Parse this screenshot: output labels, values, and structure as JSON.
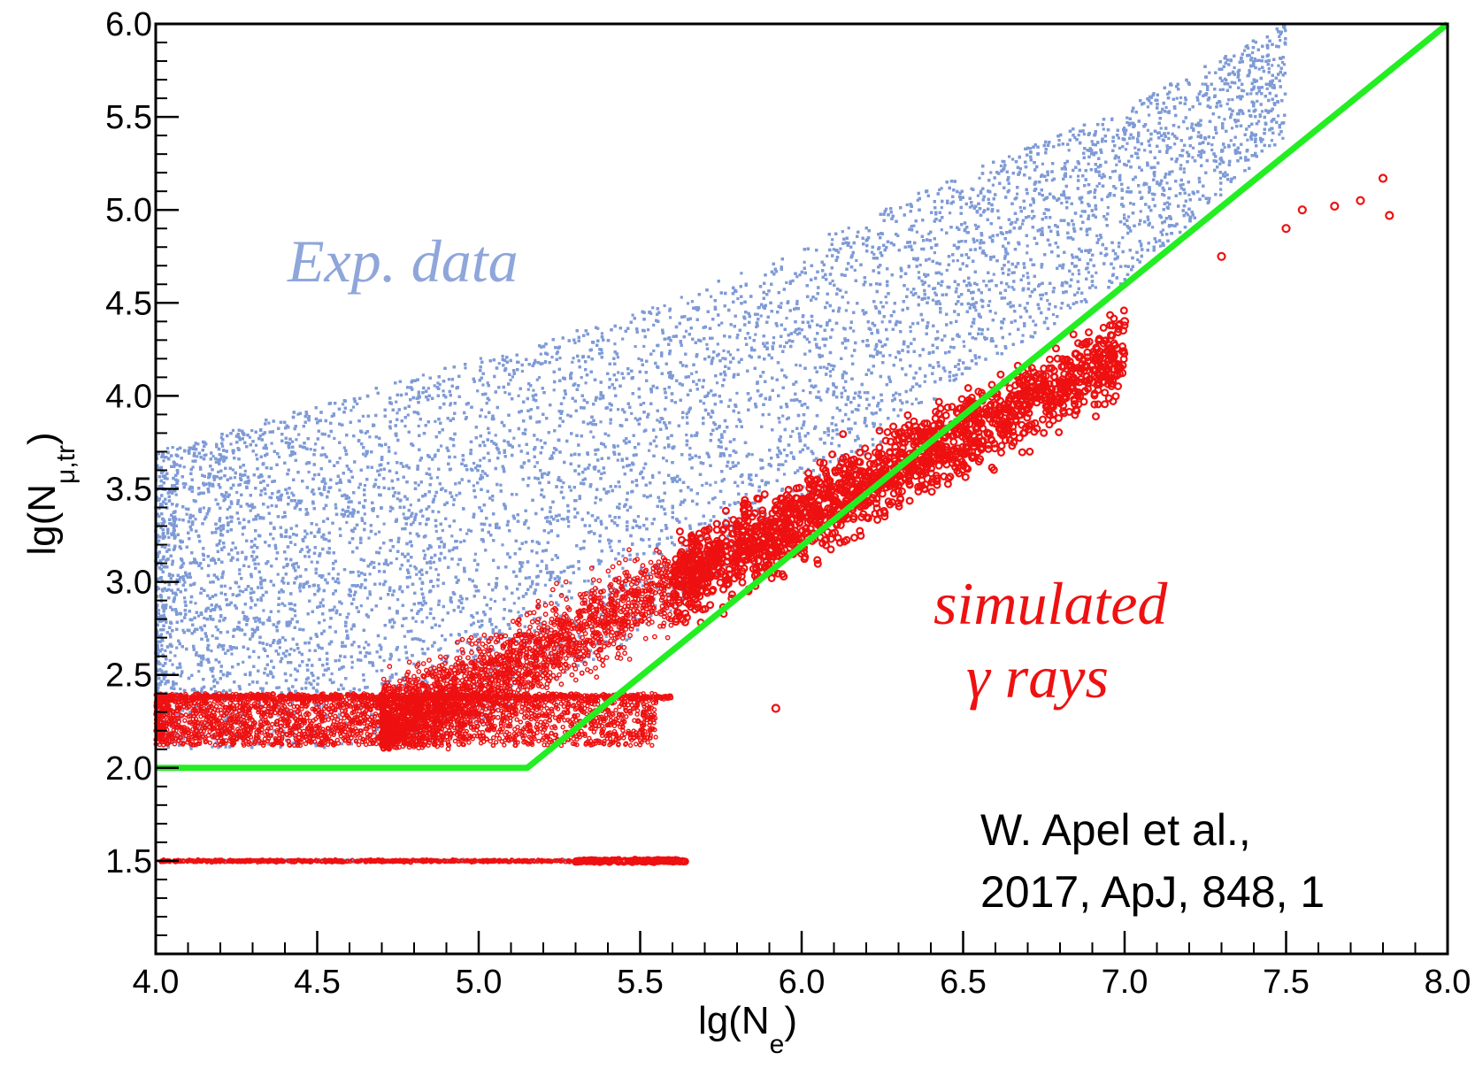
{
  "chart_data": {
    "type": "scatter",
    "xlabel": {
      "main": "lg(N",
      "sub": "e",
      "close": ")"
    },
    "ylabel": {
      "main": "lg(N",
      "sub": "μ,tr",
      "close": ")"
    },
    "xlim": [
      4.0,
      8.0
    ],
    "ylim": [
      1.0,
      6.0
    ],
    "xticks": [
      "4.0",
      "4.5",
      "5.0",
      "5.5",
      "6.0",
      "6.5",
      "7.0",
      "7.5",
      "8.0"
    ],
    "yticks": [
      "1.5",
      "2.0",
      "2.5",
      "3.0",
      "3.5",
      "4.0",
      "4.5",
      "5.0",
      "5.5",
      "6.0"
    ],
    "grid": false,
    "series": [
      {
        "name": "Exp. data",
        "color": "#7f9bd6",
        "marker": "small-dot",
        "approx_envelope_upper": [
          [
            4.0,
            3.7
          ],
          [
            4.5,
            3.95
          ],
          [
            5.0,
            4.2
          ],
          [
            5.5,
            4.45
          ],
          [
            6.0,
            4.8
          ],
          [
            6.5,
            5.2
          ],
          [
            7.0,
            5.55
          ],
          [
            7.5,
            6.0
          ]
        ],
        "approx_envelope_lower": [
          [
            4.0,
            2.1
          ],
          [
            4.5,
            2.1
          ],
          [
            5.0,
            2.2
          ],
          [
            5.5,
            2.7
          ],
          [
            6.0,
            3.4
          ],
          [
            6.5,
            4.1
          ],
          [
            7.0,
            4.6
          ],
          [
            7.5,
            5.4
          ]
        ],
        "detached_band_y": 1.5
      },
      {
        "name": "simulated γ rays",
        "color": "#ee1111",
        "marker": "open-circle",
        "highlight_points": [
          [
            5.92,
            2.32
          ],
          [
            6.7,
            4.1
          ],
          [
            7.0,
            4.4
          ],
          [
            7.3,
            4.75
          ],
          [
            7.5,
            4.9
          ],
          [
            7.55,
            5.0
          ],
          [
            7.65,
            5.02
          ],
          [
            7.73,
            5.05
          ],
          [
            7.8,
            5.17
          ],
          [
            7.82,
            4.97
          ]
        ],
        "detached_band": {
          "y": 1.5,
          "x_range": [
            4.0,
            5.65
          ]
        }
      }
    ],
    "cut_line": {
      "color": "#22ee22",
      "points": [
        [
          4.0,
          2.0
        ],
        [
          5.15,
          2.0
        ],
        [
          8.0,
          6.0
        ]
      ]
    },
    "annotations": [
      {
        "text": "Exp. data",
        "color": "#8fa6da"
      },
      {
        "text": "simulated",
        "color": "#ee1111"
      },
      {
        "text": "γ rays",
        "color": "#ee1111"
      }
    ],
    "citation": [
      "W. Apel et al.,",
      "2017, ApJ, 848, 1"
    ]
  }
}
